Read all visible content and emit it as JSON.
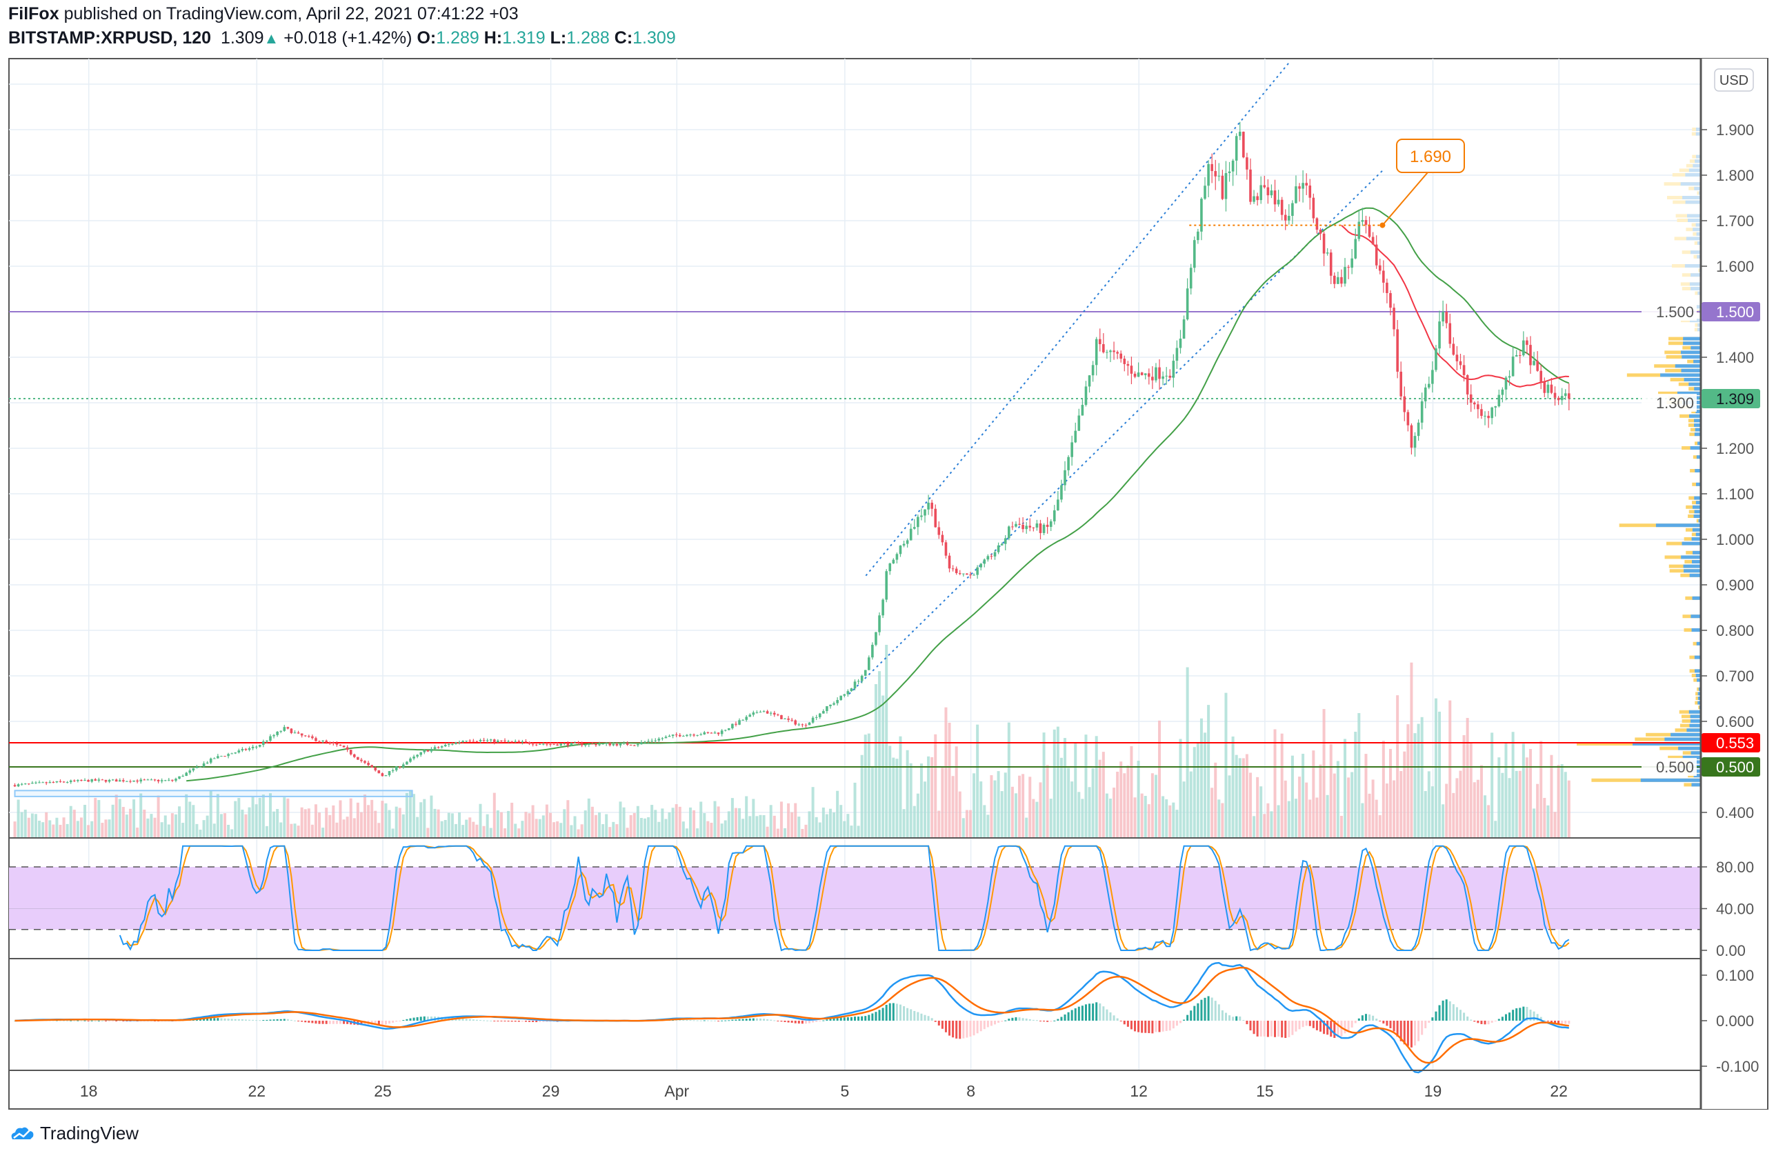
{
  "header": {
    "publisher": "FilFox",
    "published_text": "published on TradingView.com, April 22, 2021 07:41:22 +03",
    "symbol": "BITSTAMP:XRPUSD, 120",
    "last": "1.309",
    "change": "+0.018 (+1.42%)",
    "o_label": "O:",
    "o": "1.289",
    "h_label": "H:",
    "h": "1.319",
    "l_label": "L:",
    "l": "1.288",
    "c_label": "C:",
    "c": "1.309"
  },
  "footer": {
    "brand": "TradingView"
  },
  "chart_data": {
    "type": "candlestick",
    "title": "BITSTAMP:XRPUSD, 120",
    "currency": "USD",
    "interval_minutes": 120,
    "x_unit": "days since Mar 18, 2021",
    "x_range": [
      -1.76,
      35.25
    ],
    "ylim": [
      0.37,
      2.05
    ],
    "price_ticks": [
      "1.900",
      "1.800",
      "1.700",
      "1.600",
      "1.500",
      "1.400",
      "1.300",
      "1.200",
      "1.100",
      "1.000",
      "0.900",
      "0.800",
      "0.700",
      "0.600",
      "0.500",
      "0.400"
    ],
    "time_ticks": [
      {
        "label": "18",
        "day": 0
      },
      {
        "label": "22",
        "day": 4
      },
      {
        "label": "25",
        "day": 7
      },
      {
        "label": "29",
        "day": 11
      },
      {
        "label": "Apr",
        "day": 14
      },
      {
        "label": "5",
        "day": 18
      },
      {
        "label": "8",
        "day": 21
      },
      {
        "label": "12",
        "day": 25
      },
      {
        "label": "15",
        "day": 28
      },
      {
        "label": "19",
        "day": 32
      },
      {
        "label": "22",
        "day": 35
      }
    ],
    "close_path": [
      [
        -1.76,
        0.46
      ],
      [
        -1,
        0.465
      ],
      [
        0,
        0.47
      ],
      [
        2,
        0.47
      ],
      [
        3,
        0.52
      ],
      [
        4,
        0.545
      ],
      [
        4.66,
        0.585
      ],
      [
        5,
        0.57
      ],
      [
        6,
        0.545
      ],
      [
        7,
        0.48
      ],
      [
        8,
        0.535
      ],
      [
        9,
        0.56
      ],
      [
        11,
        0.55
      ],
      [
        13,
        0.55
      ],
      [
        14,
        0.57
      ],
      [
        15,
        0.575
      ],
      [
        16,
        0.625
      ],
      [
        17,
        0.59
      ],
      [
        18,
        0.66
      ],
      [
        18.5,
        0.71
      ],
      [
        18.9,
        0.86
      ],
      [
        19,
        0.935
      ],
      [
        20,
        1.085
      ],
      [
        20.5,
        0.935
      ],
      [
        21,
        0.92
      ],
      [
        21.7,
        0.985
      ],
      [
        22,
        1.035
      ],
      [
        22.8,
        1.02
      ],
      [
        23,
        1.06
      ],
      [
        23.5,
        1.235
      ],
      [
        23.9,
        1.385
      ],
      [
        24,
        1.435
      ],
      [
        24.3,
        1.41
      ],
      [
        25,
        1.36
      ],
      [
        25.8,
        1.37
      ],
      [
        26,
        1.45
      ],
      [
        26.3,
        1.635
      ],
      [
        26.7,
        1.835
      ],
      [
        27,
        1.76
      ],
      [
        27.4,
        1.9
      ],
      [
        27.7,
        1.735
      ],
      [
        28,
        1.785
      ],
      [
        28.5,
        1.71
      ],
      [
        28.9,
        1.8
      ],
      [
        29,
        1.76
      ],
      [
        29.5,
        1.61
      ],
      [
        29.7,
        1.56
      ],
      [
        30,
        1.6
      ],
      [
        30.3,
        1.7
      ],
      [
        30.7,
        1.6
      ],
      [
        31,
        1.52
      ],
      [
        31.2,
        1.335
      ],
      [
        31.5,
        1.2
      ],
      [
        31.8,
        1.325
      ],
      [
        32,
        1.37
      ],
      [
        32.2,
        1.5
      ],
      [
        32.6,
        1.385
      ],
      [
        33,
        1.285
      ],
      [
        33.2,
        1.26
      ],
      [
        33.7,
        1.335
      ],
      [
        34,
        1.41
      ],
      [
        34.2,
        1.425
      ],
      [
        34.6,
        1.335
      ],
      [
        35,
        1.31
      ],
      [
        35.25,
        1.309
      ]
    ],
    "horizontal_levels": [
      {
        "price": 1.5,
        "label": "1.500",
        "color": "#9575cd",
        "style": "solid"
      },
      {
        "price": 1.309,
        "label": "1.309",
        "color": "#53b987",
        "style": "dotted"
      },
      {
        "price": 0.553,
        "label": "0.553",
        "color": "#ff0000",
        "style": "solid"
      },
      {
        "price": 0.5,
        "label": "0.500",
        "color": "#38761d",
        "style": "solid"
      }
    ],
    "channel_lines": [
      {
        "from": [
          18.5,
          0.92
        ],
        "to": [
          28.6,
          2.05
        ]
      },
      {
        "from": [
          18.1,
          0.66
        ],
        "to": [
          30.8,
          1.81
        ]
      }
    ],
    "annotation": {
      "label": "1.690",
      "price": 1.69,
      "from_day": 26.2,
      "to_day": 30.8,
      "color": "#f57c00"
    },
    "range_box": {
      "from_day": -1.76,
      "to_day": 7.7,
      "top": 0.448,
      "bottom": 0.435
    },
    "moving_averages": [
      {
        "name": "SMA 50",
        "color": "#43a047"
      },
      {
        "name": "SMA 20",
        "color": "#f23645"
      }
    ],
    "stoch_rsi": {
      "ticks": [
        "80.00",
        "40.00",
        "0.00"
      ],
      "upper": 80,
      "lower": 20,
      "k_color": "#2196f3",
      "d_color": "#ff9800"
    },
    "macd": {
      "ticks": [
        "0.100",
        "0.000",
        "-0.100"
      ],
      "macd_color": "#2196f3",
      "signal_color": "#ff6d00"
    },
    "colors": {
      "up": "#53b987",
      "down": "#eb4d5c"
    }
  }
}
